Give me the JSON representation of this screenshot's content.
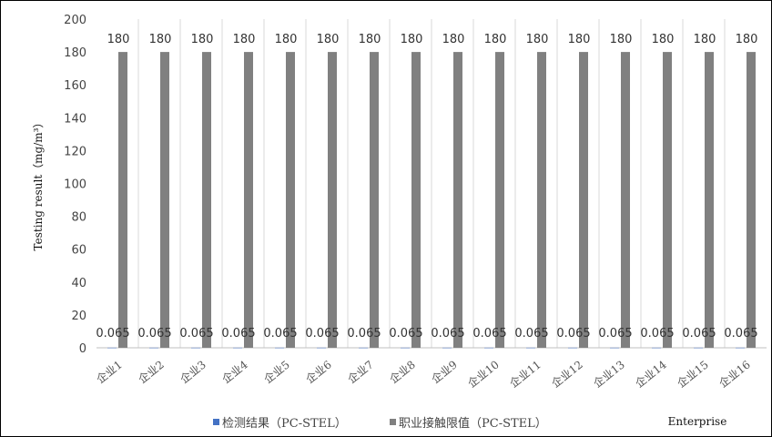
{
  "chart_data": {
    "type": "bar",
    "categories": [
      "企业1",
      "企业2",
      "企业3",
      "企业4",
      "企业5",
      "企业6",
      "企业7",
      "企业8",
      "企业9",
      "企业10",
      "企业11",
      "企业12",
      "企业13",
      "企业14",
      "企业15",
      "企业16"
    ],
    "series": [
      {
        "name": "检测结果（PC-STEL）",
        "color": "#4472C4",
        "values": [
          0.065,
          0.065,
          0.065,
          0.065,
          0.065,
          0.065,
          0.065,
          0.065,
          0.065,
          0.065,
          0.065,
          0.065,
          0.065,
          0.065,
          0.065,
          0.065
        ]
      },
      {
        "name": "职业接触限值（PC-STEL）",
        "color": "#808080",
        "values": [
          180,
          180,
          180,
          180,
          180,
          180,
          180,
          180,
          180,
          180,
          180,
          180,
          180,
          180,
          180,
          180
        ]
      }
    ],
    "xlabel": "Enterprise",
    "ylabel": "Testing result（mg/m³）",
    "ylim": [
      0,
      200
    ],
    "yticks": [
      0,
      20,
      40,
      60,
      80,
      100,
      120,
      140,
      160,
      180,
      200
    ],
    "grid": "vertical",
    "legend": "bottom"
  }
}
